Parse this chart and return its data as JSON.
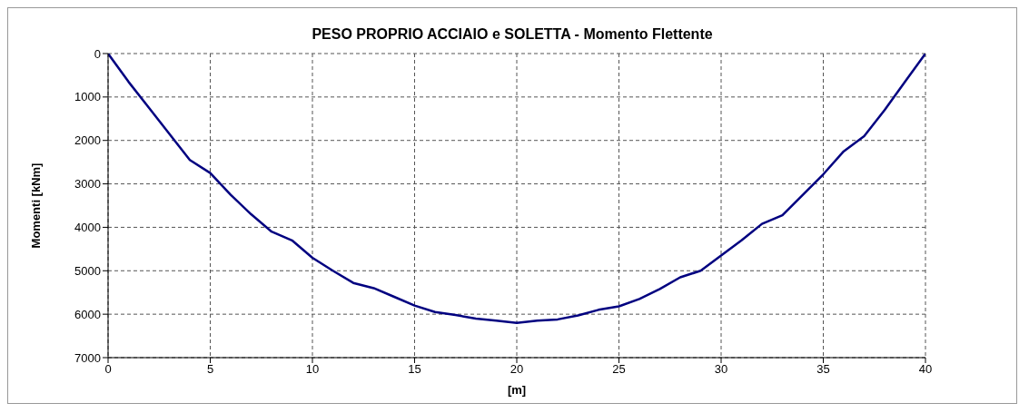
{
  "chart_data": {
    "type": "line",
    "title": "PESO PROPRIO ACCIAIO e SOLETTA - Momento Flettente",
    "xlabel": "[m]",
    "ylabel": "Momenti [kNm]",
    "x": [
      0,
      1,
      2,
      3,
      4,
      5,
      6,
      7,
      8,
      9,
      10,
      11,
      12,
      13,
      14,
      15,
      16,
      17,
      18,
      19,
      20,
      21,
      22,
      23,
      24,
      25,
      26,
      27,
      28,
      29,
      30,
      31,
      32,
      33,
      34,
      35,
      36,
      37,
      38,
      39,
      40
    ],
    "series": [
      {
        "color": "#000080",
        "values": [
          0,
          650,
          1250,
          1850,
          2450,
          2750,
          3250,
          3700,
          4100,
          4300,
          4700,
          5000,
          5280,
          5400,
          5600,
          5800,
          5950,
          6020,
          6100,
          6150,
          6200,
          6150,
          6120,
          6030,
          5900,
          5820,
          5650,
          5420,
          5150,
          5000,
          4650,
          4300,
          3920,
          3720,
          3250,
          2780,
          2250,
          1900,
          1300,
          650,
          0
        ]
      }
    ],
    "xlim": [
      0,
      40
    ],
    "xticks": [
      0,
      5,
      10,
      15,
      20,
      25,
      30,
      35,
      40
    ],
    "ylim": [
      7000,
      0
    ],
    "yticks": [
      0,
      1000,
      2000,
      3000,
      4000,
      5000,
      6000,
      7000
    ],
    "grid": true,
    "marker": "none",
    "line_style": "solid"
  }
}
